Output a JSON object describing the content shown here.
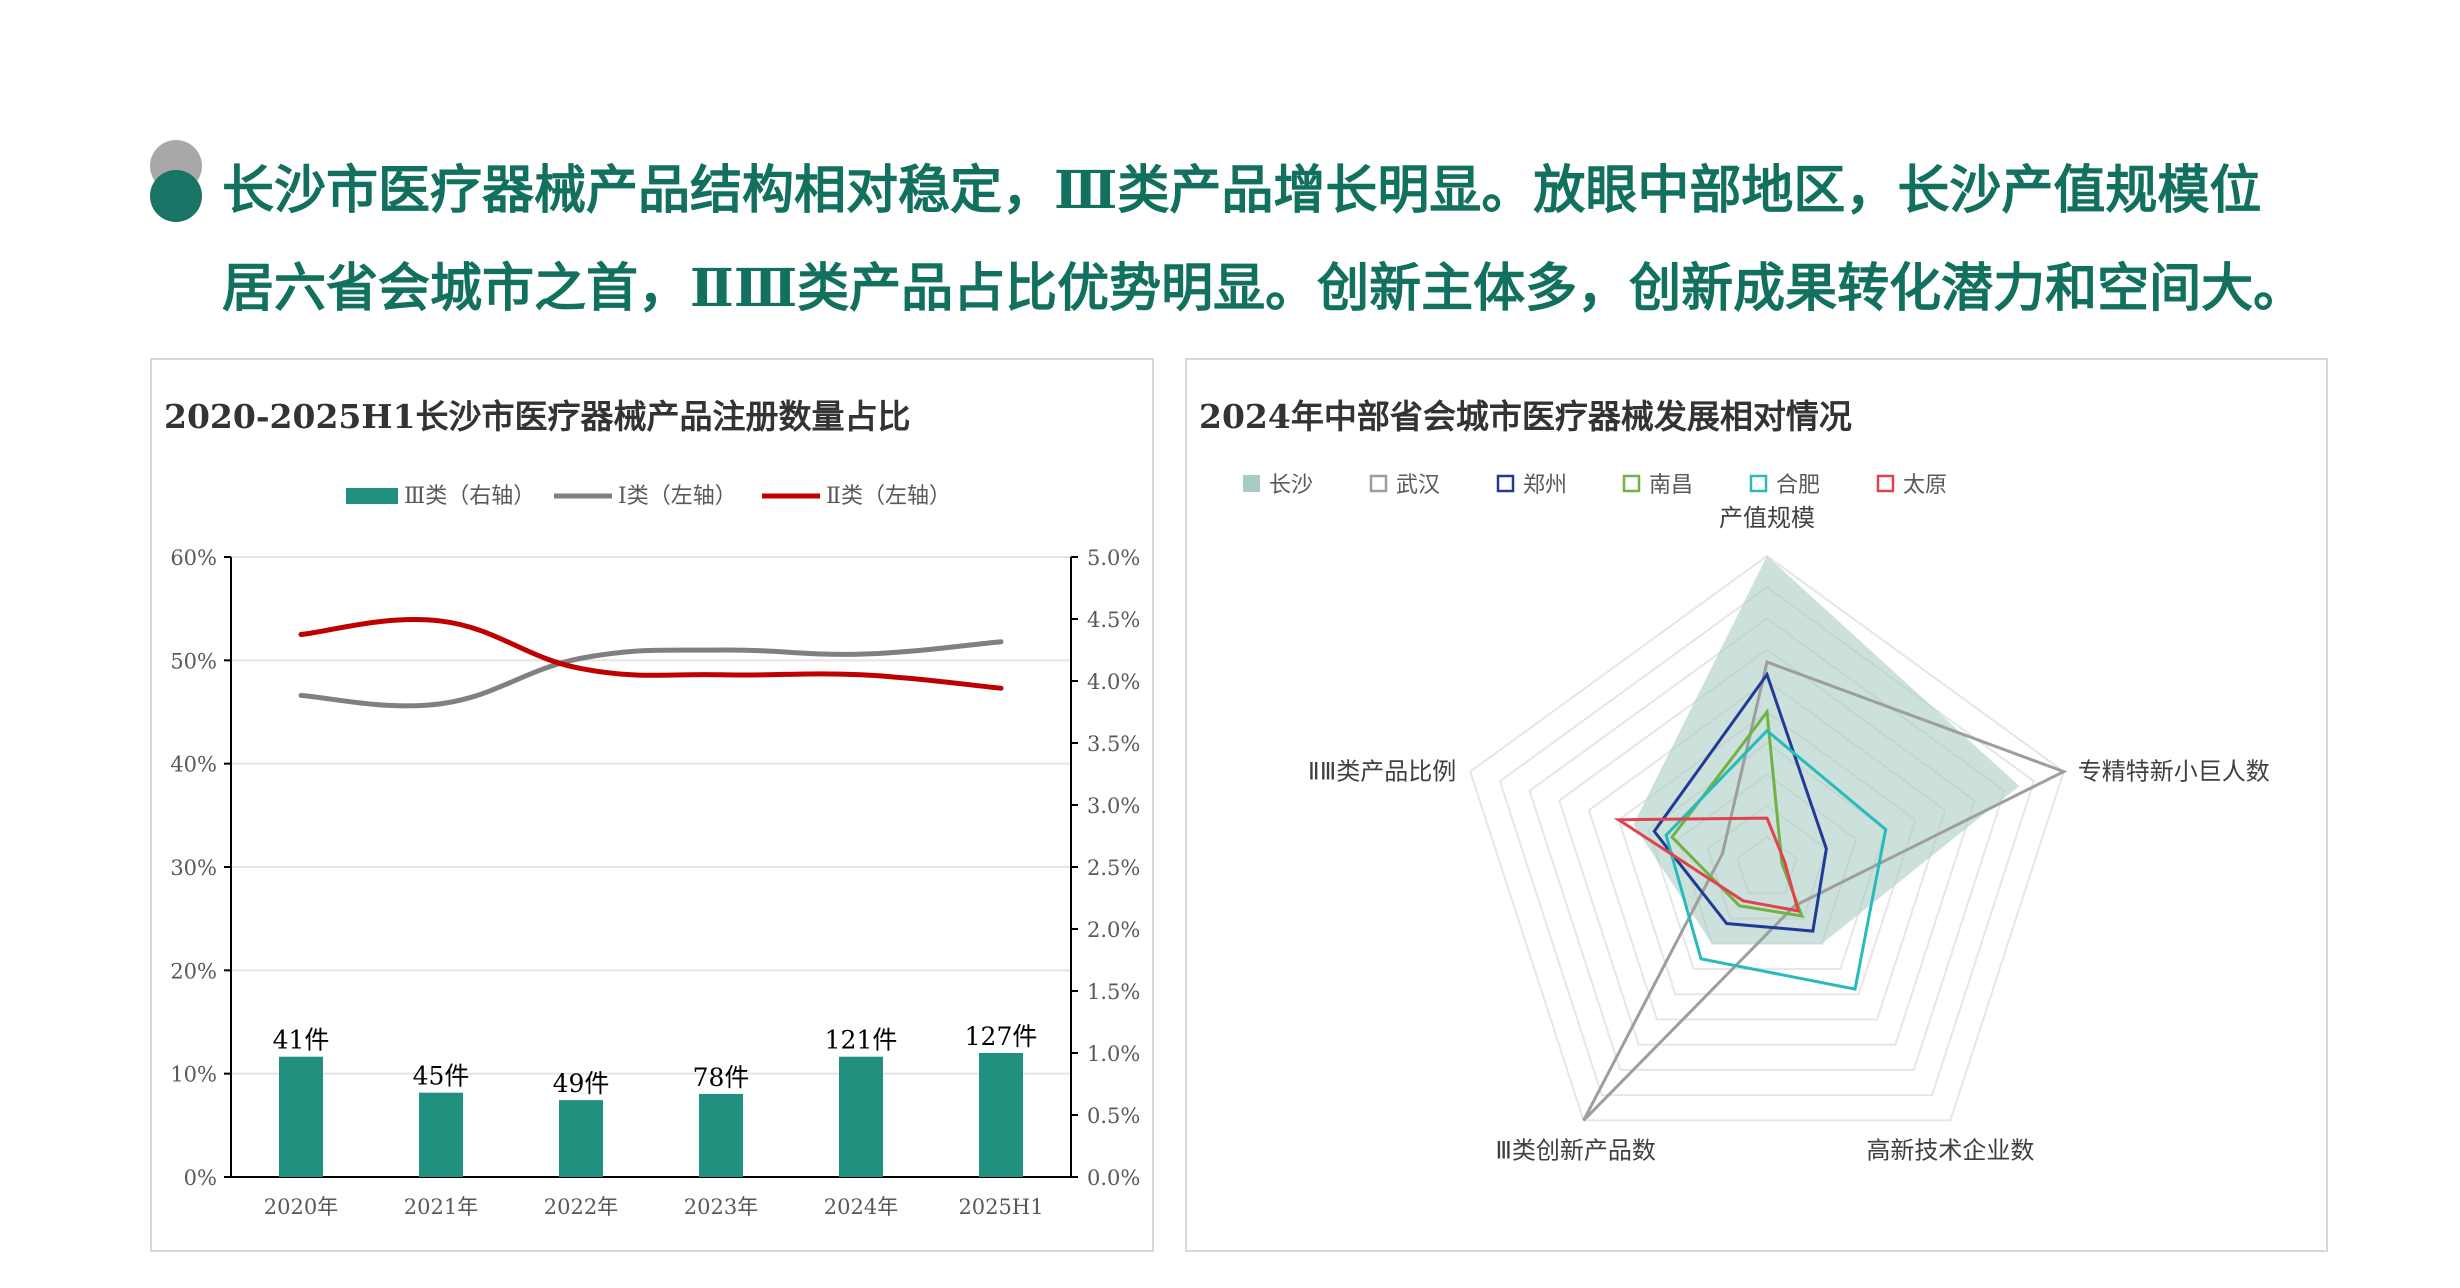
{
  "headline": {
    "line1": "长沙市医疗器械产品结构相对稳定，Ⅲ类产品增长明显。放眼中部地区，长沙产值规模位",
    "line2": "居六省会城市之首，ⅡⅢ类产品占比优势明显。创新主体多，创新成果转化潜力和空间大。"
  },
  "colors": {
    "headline": "#12705f",
    "bullet_top": "#a8a8a8",
    "bullet_bottom": "#1a7466",
    "bar": "#21907f",
    "line_I": "#808080",
    "line_II": "#c00000"
  },
  "chart_data": [
    {
      "type": "bar",
      "title": "2020-2025H1长沙市医疗器械产品注册数量占比",
      "categories": [
        "2020年",
        "2021年",
        "2022年",
        "2023年",
        "2024年",
        "2025H1"
      ],
      "legend": [
        "Ⅲ类（右轴）",
        "Ⅰ类（左轴）",
        "Ⅱ类（左轴）"
      ],
      "legend_position": "top-center",
      "left_axis": {
        "ylim": [
          0,
          60
        ],
        "ticks": [
          "0%",
          "10%",
          "20%",
          "30%",
          "40%",
          "50%",
          "60%"
        ]
      },
      "right_axis": {
        "ylim": [
          0,
          5.0
        ],
        "ticks": [
          "0.0%",
          "0.5%",
          "1.0%",
          "1.5%",
          "2.0%",
          "2.5%",
          "3.0%",
          "3.5%",
          "4.0%",
          "4.5%",
          "5.0%"
        ]
      },
      "grid": true,
      "series": [
        {
          "name": "Ⅲ类（右轴）",
          "type": "bar",
          "axis": "right",
          "values": [
            0.97,
            0.68,
            0.62,
            0.67,
            0.97,
            1.0
          ],
          "labels": [
            "41件",
            "45件",
            "49件",
            "78件",
            "121件",
            "127件"
          ]
        },
        {
          "name": "Ⅰ类（左轴）",
          "type": "line",
          "axis": "left",
          "values": [
            46.6,
            45.8,
            50.2,
            51.0,
            50.6,
            51.8
          ]
        },
        {
          "name": "Ⅱ类（左轴）",
          "type": "line",
          "axis": "left",
          "values": [
            52.5,
            53.8,
            49.2,
            48.6,
            48.6,
            47.3
          ]
        }
      ]
    },
    {
      "type": "radar",
      "title": "2024年中部省会城市医疗器械发展相对情况",
      "axes": [
        "产值规模",
        "专精特新小巨人数",
        "高新技术企业数",
        "Ⅲ类创新产品数",
        "ⅡⅢ类产品比例"
      ],
      "legend_position": "top-left",
      "rmax": 10,
      "series": [
        {
          "name": "长沙",
          "values": [
            10.0,
            8.5,
            3.0,
            3.0,
            4.5
          ]
        },
        {
          "name": "武汉",
          "values": [
            6.6,
            10.0,
            1.5,
            10.0,
            1.5
          ]
        },
        {
          "name": "郑州",
          "values": [
            6.2,
            2.0,
            2.5,
            2.2,
            3.8
          ]
        },
        {
          "name": "南昌",
          "values": [
            5.0,
            0.5,
            1.9,
            1.5,
            3.2
          ]
        },
        {
          "name": "合肥",
          "values": [
            4.4,
            4.0,
            4.8,
            3.6,
            3.4
          ]
        },
        {
          "name": "太原",
          "values": [
            1.6,
            0.6,
            1.7,
            1.3,
            5.0
          ]
        }
      ],
      "series_colors": {
        "长沙": "#aacbc5",
        "武汉": "#9e9e9e",
        "郑州": "#203a96",
        "南昌": "#70b244",
        "合肥": "#27bbbb",
        "太原": "#e0434c"
      }
    }
  ]
}
